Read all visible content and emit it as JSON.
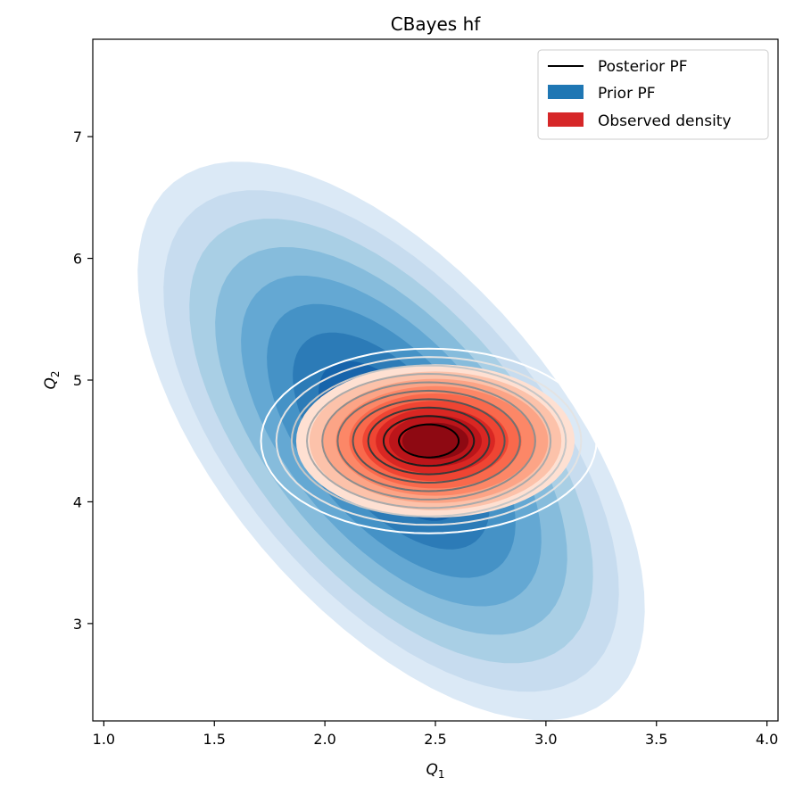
{
  "chart_data": {
    "type": "kde-contour",
    "title": "CBayes hf",
    "xlabel": "Q",
    "xlabel_sub": "1",
    "ylabel": "Q",
    "ylabel_sub": "2",
    "xlim": [
      0.95,
      4.05
    ],
    "ylim": [
      2.2,
      7.8
    ],
    "xticks": [
      "1.0",
      "1.5",
      "2.0",
      "2.5",
      "3.0",
      "3.5",
      "4.0"
    ],
    "yticks": [
      "3",
      "4",
      "5",
      "6",
      "7"
    ],
    "legend_position": "top-right",
    "series": [
      {
        "name": "Posterior PF",
        "kind": "line-contours",
        "color": "#000000",
        "center": [
          2.47,
          4.5
        ],
        "sx": 0.33,
        "sy": 0.33,
        "rho": 0.0,
        "levels": 10
      },
      {
        "name": "Prior PF",
        "kind": "filled-contours",
        "color": "#1f77b4",
        "center": [
          2.3,
          4.5
        ],
        "sx": 0.45,
        "sy": 0.9,
        "rho": -0.6,
        "levels": 9
      },
      {
        "name": "Observed density",
        "kind": "filled-contours",
        "color": "#d62728",
        "center": [
          2.5,
          4.5
        ],
        "sx": 0.3,
        "sy": 0.3,
        "rho": 0.0,
        "levels": 10
      }
    ],
    "colors": {
      "prior_scale": [
        "#dbe9f6",
        "#c7dcef",
        "#a9cfe5",
        "#86bcdc",
        "#64a8d3",
        "#4592c6",
        "#2c7bb7",
        "#1764ab",
        "#0d4f96"
      ],
      "observed_scale": [
        "#fee0d2",
        "#fcc2aa",
        "#fca486",
        "#fc8767",
        "#f9694c",
        "#ef4533",
        "#d92723",
        "#bb151a",
        "#8e0912"
      ],
      "posterior_outer": "#ffffff"
    }
  }
}
